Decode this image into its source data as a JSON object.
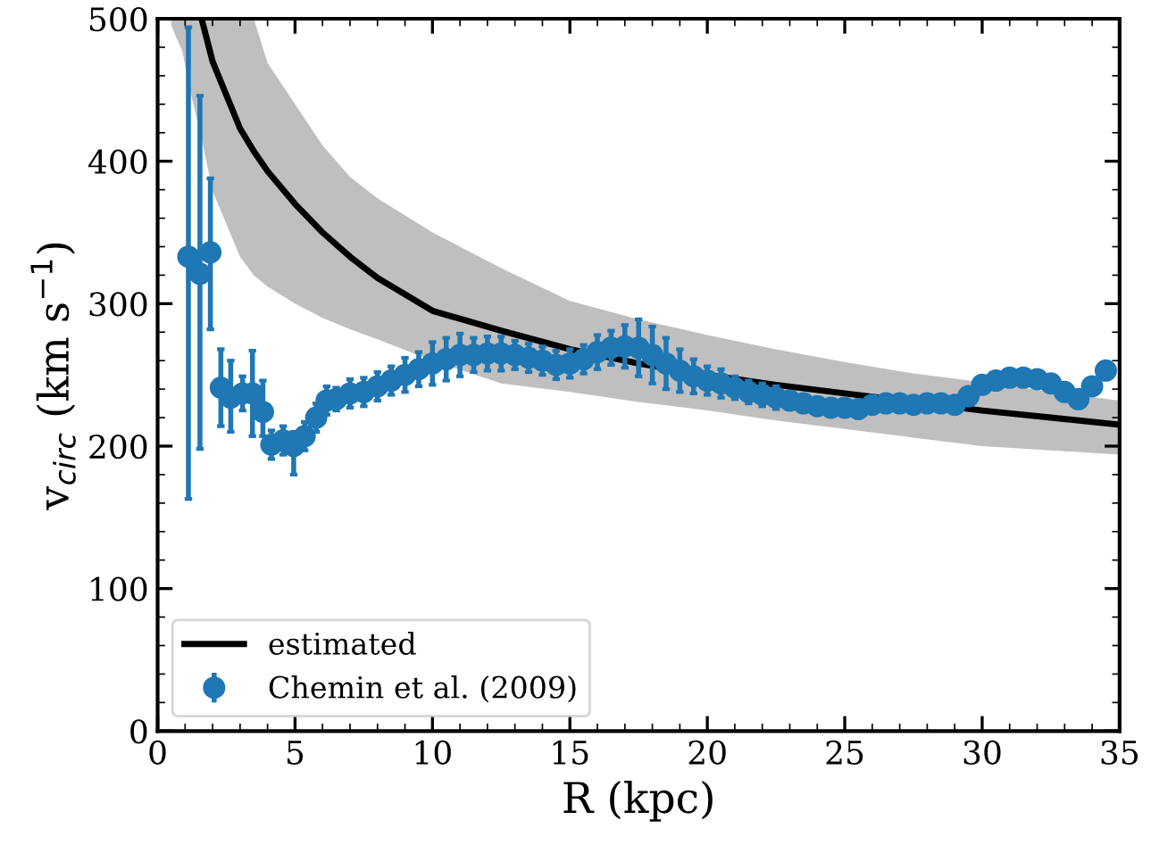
{
  "chart_data": {
    "type": "line",
    "xlabel": "R (kpc)",
    "ylabel": "v$_{circ}$ (km s$^{−1}$)",
    "xlim": [
      0,
      35
    ],
    "ylim": [
      0,
      500
    ],
    "xticks": [
      0,
      5,
      10,
      15,
      20,
      25,
      30,
      35
    ],
    "yticks": [
      0,
      100,
      200,
      300,
      400,
      500
    ],
    "grid": false,
    "legend": "bottom left",
    "series": [
      {
        "name": "estimated",
        "color": "#000000",
        "line_style": "solid",
        "marker": "none",
        "x": [
          0.5,
          0.9,
          1.2,
          1.6,
          2,
          3,
          3.5,
          4,
          5,
          6,
          7,
          8,
          10,
          12.5,
          15,
          17.5,
          20,
          22.5,
          25,
          27.5,
          30,
          32.5,
          35
        ],
        "values": [
          null,
          null,
          null,
          500,
          470,
          423,
          407,
          393,
          370,
          350,
          333,
          318,
          295,
          281,
          268,
          258,
          250,
          243,
          237,
          231,
          225,
          220,
          215
        ],
        "lower": [
          495,
          477,
          448,
          416,
          379,
          333,
          320,
          312,
          300,
          290,
          282,
          275,
          260,
          244,
          238,
          231,
          225,
          218,
          212,
          206,
          200,
          197,
          194
        ],
        "upper": [
          500,
          500,
          500,
          500,
          500,
          500,
          500,
          469,
          440,
          411,
          389,
          374,
          350,
          325,
          302,
          289,
          278,
          268,
          259,
          251,
          245,
          238,
          232
        ]
      },
      {
        "name": "Chemin et al. (2009)",
        "type": "scatter",
        "color": "#1f77b4",
        "marker": "circle",
        "x": [
          1.12,
          1.54,
          1.92,
          2.3,
          2.66,
          3.09,
          3.45,
          3.83,
          4.14,
          4.57,
          4.95,
          5.35,
          5.77,
          6.15,
          6.5,
          7.0,
          7.5,
          8.0,
          8.5,
          9.0,
          9.5,
          10.0,
          10.5,
          11.0,
          11.5,
          12.0,
          12.5,
          13.0,
          13.5,
          14.0,
          14.5,
          15.0,
          15.5,
          16.0,
          16.5,
          17.0,
          17.5,
          18.0,
          18.5,
          19.0,
          19.5,
          20.0,
          20.5,
          21.0,
          21.5,
          22.0,
          22.5,
          23.0,
          23.5,
          24.0,
          24.5,
          25.0,
          25.5,
          26.0,
          26.5,
          27.0,
          27.5,
          28.0,
          28.5,
          29.0,
          29.5,
          30.0,
          30.5,
          31.0,
          31.5,
          32.0,
          32.5,
          33.0,
          33.5,
          34.0,
          34.5
        ],
        "values": [
          333,
          321,
          336,
          241,
          234,
          237,
          237,
          224,
          201,
          204,
          200,
          207,
          220,
          232,
          233,
          237,
          238,
          242,
          246,
          250,
          254,
          258,
          261,
          264,
          264,
          265,
          265,
          264,
          262,
          260,
          257,
          258,
          261,
          266,
          269,
          270,
          269,
          264,
          258,
          253,
          249,
          246,
          244,
          241,
          238,
          236,
          234,
          232,
          230,
          228,
          227,
          227,
          226,
          229,
          230,
          230,
          229,
          230,
          230,
          229,
          235,
          243,
          246,
          248,
          248,
          247,
          244,
          238,
          233,
          242,
          253
        ],
        "errors": [
          [
            163,
            494
          ],
          [
            198,
            446
          ],
          [
            282,
            388
          ],
          [
            214,
            268
          ],
          [
            210,
            260
          ],
          12,
          [
            207,
            267
          ],
          [
            207,
            246
          ],
          10,
          10,
          [
            180,
            210
          ],
          10,
          10,
          10,
          8,
          10,
          10,
          10,
          10,
          12,
          12,
          15,
          15,
          15,
          12,
          12,
          12,
          10,
          10,
          10,
          10,
          10,
          10,
          12,
          12,
          15,
          20,
          20,
          18,
          15,
          12,
          10,
          10,
          8,
          8,
          8,
          8,
          6,
          6,
          6,
          6,
          6,
          6,
          5,
          5,
          5,
          5,
          5,
          5,
          5,
          5,
          5,
          5,
          5,
          5,
          5,
          5,
          5,
          5,
          5,
          5
        ]
      }
    ]
  }
}
